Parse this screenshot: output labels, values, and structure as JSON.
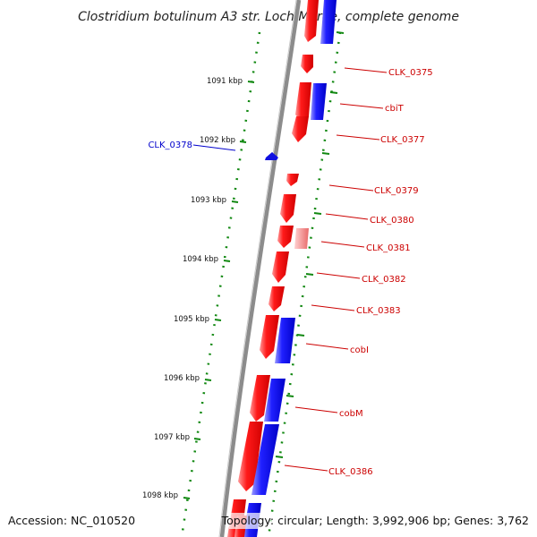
{
  "title": "Clostridium botulinum A3 str. Loch Maree, complete genome",
  "footer": {
    "accession": "Accession: NC_010520",
    "topology": "Topology: circular; Length: 3,992,906 bp; Genes: 3,762"
  },
  "ruler": [
    "1091 kbp",
    "1092 kbp",
    "1093 kbp",
    "1094 kbp",
    "1095 kbp",
    "1096 kbp",
    "1097 kbp",
    "1098 kbp"
  ],
  "gene_labels": [
    {
      "text": "CLK_0375",
      "color": "#cc0000"
    },
    {
      "text": "cbiT",
      "color": "#cc0000"
    },
    {
      "text": "CLK_0377",
      "color": "#cc0000"
    },
    {
      "text": "CLK_0378",
      "color": "#0000cc"
    },
    {
      "text": "CLK_0379",
      "color": "#cc0000"
    },
    {
      "text": "CLK_0380",
      "color": "#cc0000"
    },
    {
      "text": "CLK_0381",
      "color": "#cc0000"
    },
    {
      "text": "CLK_0382",
      "color": "#cc0000"
    },
    {
      "text": "CLK_0383",
      "color": "#cc0000"
    },
    {
      "text": "cobI",
      "color": "#cc0000"
    },
    {
      "text": "cobM",
      "color": "#cc0000"
    },
    {
      "text": "CLK_0386",
      "color": "#cc0000"
    }
  ],
  "colors": {
    "forward_gene": "#e80000",
    "reverse_gene": "#1010e0",
    "pseudogene": "#f08080",
    "backbone": "#888888",
    "gc_ticks": "#118811"
  }
}
